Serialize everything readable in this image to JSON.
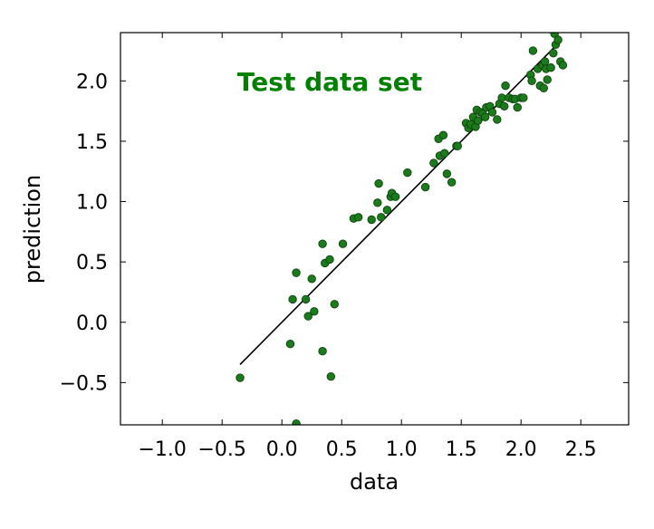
{
  "chart_data": {
    "type": "scatter",
    "title": "",
    "xlabel": "data",
    "ylabel": "prediction",
    "xlim": [
      -1.35,
      2.9
    ],
    "ylim": [
      -0.85,
      2.4
    ],
    "xticks": [
      -1.0,
      -0.5,
      0.0,
      0.5,
      1.0,
      1.5,
      2.0,
      2.5
    ],
    "xtick_labels": [
      "−1.0",
      "−0.5",
      "0.0",
      "0.5",
      "1.0",
      "1.5",
      "2.0",
      "2.5"
    ],
    "yticks": [
      -0.5,
      0.0,
      0.5,
      1.0,
      1.5,
      2.0
    ],
    "ytick_labels": [
      "−0.5",
      "0.0",
      "0.5",
      "1.0",
      "1.5",
      "2.0"
    ],
    "grid": false,
    "annotation": {
      "text": "Test data set",
      "color": "#008000",
      "x": 0.4,
      "y": 1.92
    },
    "point_color": "#1b7a1b",
    "line_color": "#000000",
    "fit_line": {
      "x": [
        -0.35,
        2.33
      ],
      "y": [
        -0.35,
        2.33
      ]
    },
    "points": [
      [
        -0.35,
        -0.46
      ],
      [
        0.07,
        -0.18
      ],
      [
        0.09,
        0.19
      ],
      [
        0.12,
        0.41
      ],
      [
        0.12,
        -0.84
      ],
      [
        0.2,
        0.19
      ],
      [
        0.22,
        0.05
      ],
      [
        0.25,
        0.36
      ],
      [
        0.27,
        0.09
      ],
      [
        0.34,
        0.65
      ],
      [
        0.34,
        -0.24
      ],
      [
        0.36,
        0.49
      ],
      [
        0.4,
        0.52
      ],
      [
        0.41,
        -0.45
      ],
      [
        0.44,
        0.15
      ],
      [
        0.51,
        0.65
      ],
      [
        0.6,
        0.86
      ],
      [
        0.64,
        0.87
      ],
      [
        0.75,
        0.85
      ],
      [
        0.8,
        0.99
      ],
      [
        0.83,
        0.87
      ],
      [
        0.81,
        1.15
      ],
      [
        0.88,
        0.93
      ],
      [
        0.91,
        1.04
      ],
      [
        0.92,
        1.07
      ],
      [
        0.95,
        1.04
      ],
      [
        1.05,
        1.24
      ],
      [
        1.2,
        1.12
      ],
      [
        1.27,
        1.32
      ],
      [
        1.31,
        1.52
      ],
      [
        1.32,
        1.38
      ],
      [
        1.35,
        1.55
      ],
      [
        1.36,
        1.4
      ],
      [
        1.38,
        1.23
      ],
      [
        1.42,
        1.16
      ],
      [
        1.46,
        1.46
      ],
      [
        1.47,
        1.46
      ],
      [
        1.54,
        1.65
      ],
      [
        1.56,
        1.61
      ],
      [
        1.58,
        1.64
      ],
      [
        1.6,
        1.7
      ],
      [
        1.62,
        1.62
      ],
      [
        1.63,
        1.76
      ],
      [
        1.64,
        1.67
      ],
      [
        1.66,
        1.74
      ],
      [
        1.68,
        1.73
      ],
      [
        1.7,
        1.7
      ],
      [
        1.71,
        1.78
      ],
      [
        1.74,
        1.79
      ],
      [
        1.76,
        1.74
      ],
      [
        1.8,
        1.68
      ],
      [
        1.82,
        1.81
      ],
      [
        1.84,
        1.86
      ],
      [
        1.86,
        1.79
      ],
      [
        1.87,
        1.96
      ],
      [
        1.9,
        1.86
      ],
      [
        1.93,
        1.85
      ],
      [
        1.95,
        1.85
      ],
      [
        1.97,
        1.78
      ],
      [
        2.0,
        1.86
      ],
      [
        2.02,
        1.86
      ],
      [
        2.08,
        2.05
      ],
      [
        2.09,
        2.0
      ],
      [
        2.1,
        2.25
      ],
      [
        2.14,
        2.1
      ],
      [
        2.16,
        1.96
      ],
      [
        2.18,
        2.13
      ],
      [
        2.19,
        1.94
      ],
      [
        2.2,
        2.16
      ],
      [
        2.21,
        2.1
      ],
      [
        2.22,
        2.01
      ],
      [
        2.25,
        2.11
      ],
      [
        2.27,
        2.23
      ],
      [
        2.28,
        2.39
      ],
      [
        2.29,
        2.3
      ],
      [
        2.31,
        2.34
      ],
      [
        2.33,
        2.16
      ],
      [
        2.35,
        2.13
      ]
    ]
  }
}
